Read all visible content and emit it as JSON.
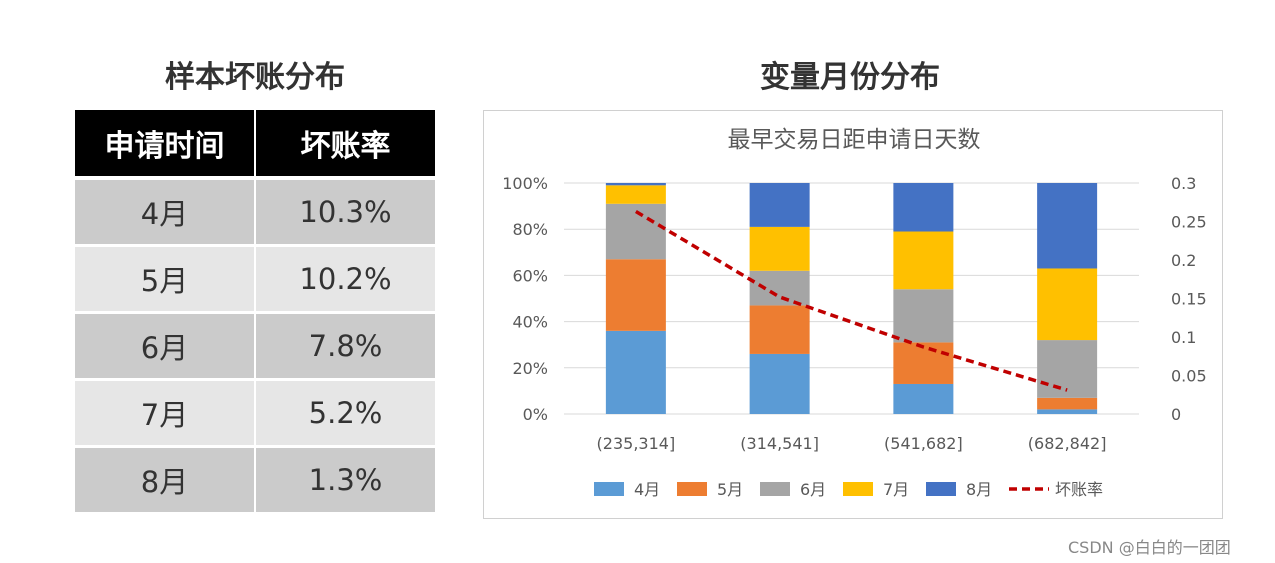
{
  "left_panel": {
    "title": "样本坏账分布",
    "headers": [
      "申请时间",
      "坏账率"
    ],
    "rows": [
      {
        "month": "4月",
        "rate": "10.3%"
      },
      {
        "month": "5月",
        "rate": "10.2%"
      },
      {
        "month": "6月",
        "rate": "7.8%"
      },
      {
        "month": "7月",
        "rate": "5.2%"
      },
      {
        "month": "8月",
        "rate": "1.3%"
      }
    ]
  },
  "right_panel": {
    "title": "变量月份分布"
  },
  "watermark": "CSDN @白白的一团团",
  "chart_data": {
    "type": "bar",
    "stacked": "percent",
    "title": "最早交易日距申请日天数",
    "categories": [
      "(235,314]",
      "(314,541]",
      "(541,682]",
      "(682,842]"
    ],
    "series": [
      {
        "name": "4月",
        "color": "#5b9bd5",
        "values": [
          36,
          26,
          13,
          2
        ]
      },
      {
        "name": "5月",
        "color": "#ed7d31",
        "values": [
          31,
          21,
          18,
          5
        ]
      },
      {
        "name": "6月",
        "color": "#a5a5a5",
        "values": [
          24,
          15,
          23,
          25
        ]
      },
      {
        "name": "7月",
        "color": "#ffc000",
        "values": [
          8,
          19,
          25,
          31
        ]
      },
      {
        "name": "8月",
        "color": "#4472c4",
        "values": [
          1,
          19,
          21,
          37
        ]
      }
    ],
    "line_series": {
      "name": "坏账率",
      "color": "#c00000",
      "axis": "right",
      "values": [
        0.263,
        0.152,
        0.087,
        0.031
      ]
    },
    "y_left": {
      "min": 0,
      "max": 100,
      "ticks": [
        "0%",
        "20%",
        "40%",
        "60%",
        "80%",
        "100%"
      ]
    },
    "y_right": {
      "min": 0,
      "max": 0.3,
      "ticks": [
        "0",
        "0.05",
        "0.1",
        "0.15",
        "0.2",
        "0.25",
        "0.3"
      ]
    },
    "grid": true,
    "legend": "bottom"
  }
}
